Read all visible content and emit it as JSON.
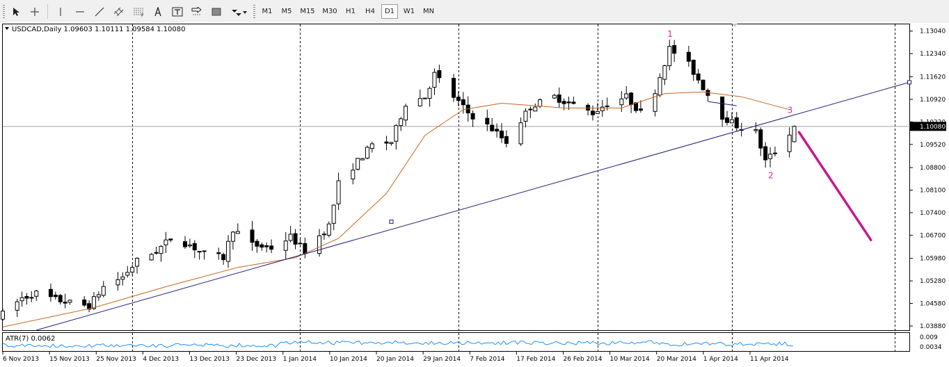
{
  "toolbar": {
    "tools": [
      {
        "name": "cursor-tool",
        "icon": "cursor-icon",
        "active": true
      },
      {
        "name": "crosshair-tool",
        "icon": "crosshair-icon",
        "active": false
      },
      {
        "name": "vertical-line-tool",
        "icon": "vertical-line-icon",
        "active": false
      },
      {
        "name": "horizontal-line-tool",
        "icon": "horizontal-line-icon",
        "active": false
      },
      {
        "name": "trendline-tool",
        "icon": "trendline-icon",
        "active": false
      },
      {
        "name": "equidistant-channel-tool",
        "icon": "channel-icon",
        "active": false
      },
      {
        "name": "fibonacci-tool",
        "icon": "fibonacci-icon",
        "active": false
      },
      {
        "name": "text-tool",
        "icon": "text-icon",
        "active": false
      },
      {
        "name": "text-label-tool",
        "icon": "text-label-icon",
        "active": false
      },
      {
        "name": "arrow-label-tool",
        "icon": "arrow-label-icon",
        "active": false
      },
      {
        "name": "rectangle-tool",
        "icon": "rectangle-icon",
        "active": false
      },
      {
        "name": "shapes-menu-tool",
        "icon": "shapes-dropdown-icon",
        "active": false
      }
    ],
    "timeframes": [
      "M1",
      "M5",
      "M15",
      "M30",
      "H1",
      "H4",
      "D1",
      "W1",
      "MN"
    ],
    "active_timeframe": "D1"
  },
  "chart_header": {
    "symbol_line": "USDCAD,Daily  1.09603 1.10111 1.09584 1.10080"
  },
  "indicator": {
    "label": "ATR(7) 0.0062",
    "scale_top": "0.009",
    "scale_bottom": "0.0034",
    "color": "#1e90ff"
  },
  "colors": {
    "ma": "#c8641e",
    "trendline": "#1e1e78",
    "arrow": "#c8178c",
    "wave_labels": "#e0248a"
  },
  "chart_data": {
    "type": "candlestick",
    "symbol": "USDCAD",
    "timeframe": "Daily",
    "last_ohlc": {
      "open": 1.09603,
      "high": 1.10111,
      "low": 1.09584,
      "close": 1.1008
    },
    "current_price_label": "1.10080",
    "price_axis_labels": [
      "1.13040",
      "1.12340",
      "1.11620",
      "1.10920",
      "1.10220",
      "1.09520",
      "1.08800",
      "1.08100",
      "1.07400",
      "1.06700",
      "1.05980",
      "1.05280",
      "1.04580",
      "1.03880"
    ],
    "ylim": [
      1.0375,
      1.1325
    ],
    "date_axis_labels": [
      "6 Nov 2013",
      "15 Nov 2013",
      "25 Nov 2013",
      "4 Dec 2013",
      "13 Dec 2013",
      "23 Dec 2013",
      "1 Jan 2014",
      "10 Jan 2014",
      "20 Jan 2014",
      "29 Jan 2014",
      "7 Feb 2014",
      "17 Feb 2014",
      "26 Feb 2014",
      "10 Mar 2014",
      "20 Mar 2014",
      "1 Apr 2014",
      "11 Apr 2014"
    ],
    "period_separators": [
      "2013-11-28",
      "2014-01-02",
      "2014-02-04",
      "2014-03-05",
      "2014-04-02",
      "2014-05-06"
    ],
    "close_path": [
      [
        "2013-11-01",
        1.0425
      ],
      [
        "2013-11-05",
        1.0475
      ],
      [
        "2013-11-08",
        1.049
      ],
      [
        "2013-11-12",
        1.047
      ],
      [
        "2013-11-15",
        1.046
      ],
      [
        "2013-11-19",
        1.045
      ],
      [
        "2013-11-22",
        1.051
      ],
      [
        "2013-11-26",
        1.054
      ],
      [
        "2013-11-29",
        1.059
      ],
      [
        "2013-12-03",
        1.062
      ],
      [
        "2013-12-06",
        1.066
      ],
      [
        "2013-12-10",
        1.064
      ],
      [
        "2013-12-13",
        1.061
      ],
      [
        "2013-12-17",
        1.06
      ],
      [
        "2013-12-19",
        1.069
      ],
      [
        "2013-12-23",
        1.064
      ],
      [
        "2013-12-27",
        1.063
      ],
      [
        "2013-12-31",
        1.0665
      ],
      [
        "2014-01-03",
        1.062
      ],
      [
        "2014-01-08",
        1.07
      ],
      [
        "2014-01-10",
        1.083
      ],
      [
        "2014-01-14",
        1.09
      ],
      [
        "2014-01-17",
        1.095
      ],
      [
        "2014-01-21",
        1.096
      ],
      [
        "2014-01-24",
        1.108
      ],
      [
        "2014-01-28",
        1.11
      ],
      [
        "2014-01-30",
        1.117
      ],
      [
        "2014-02-03",
        1.11
      ],
      [
        "2014-02-06",
        1.105
      ],
      [
        "2014-02-11",
        1.1
      ],
      [
        "2014-02-14",
        1.096
      ],
      [
        "2014-02-19",
        1.107
      ],
      [
        "2014-02-24",
        1.11
      ],
      [
        "2014-02-27",
        1.108
      ],
      [
        "2014-03-04",
        1.105
      ],
      [
        "2014-03-07",
        1.108
      ],
      [
        "2014-03-11",
        1.11
      ],
      [
        "2014-03-14",
        1.105
      ],
      [
        "2014-03-17",
        1.112
      ],
      [
        "2014-03-20",
        1.125
      ],
      [
        "2014-03-24",
        1.12
      ],
      [
        "2014-03-27",
        1.113
      ],
      [
        "2014-03-31",
        1.104
      ],
      [
        "2014-04-03",
        1.101
      ],
      [
        "2014-04-07",
        1.099
      ],
      [
        "2014-04-09",
        1.09
      ],
      [
        "2014-04-11",
        1.093
      ],
      [
        "2014-04-15",
        1.1008
      ]
    ],
    "moving_average": [
      [
        "2013-11-01",
        1.0385
      ],
      [
        "2013-11-20",
        1.0445
      ],
      [
        "2013-12-05",
        1.051
      ],
      [
        "2013-12-20",
        1.057
      ],
      [
        "2014-01-01",
        1.06
      ],
      [
        "2014-01-10",
        1.066
      ],
      [
        "2014-01-20",
        1.08
      ],
      [
        "2014-01-28",
        1.098
      ],
      [
        "2014-02-05",
        1.106
      ],
      [
        "2014-02-13",
        1.108
      ],
      [
        "2014-02-26",
        1.1065
      ],
      [
        "2014-03-10",
        1.1065
      ],
      [
        "2014-03-19",
        1.111
      ],
      [
        "2014-03-27",
        1.1115
      ],
      [
        "2014-04-04",
        1.11
      ],
      [
        "2014-04-14",
        1.106
      ]
    ],
    "trendline": {
      "points": [
        [
          "2013-11-08",
          1.0375
        ],
        [
          "2014-01-21",
          1.0712
        ],
        [
          "2014-05-09",
          1.1145
        ]
      ]
    },
    "short_trendline": {
      "points": [
        [
          "2014-03-28",
          1.1085
        ],
        [
          "2014-04-03",
          1.1072
        ]
      ]
    },
    "projection_arrow": {
      "points": [
        [
          "2014-04-16",
          1.099
        ],
        [
          "2014-05-01",
          1.0655
        ]
      ]
    },
    "wave_labels": [
      {
        "text": "1",
        "date": "2014-03-20",
        "price": 1.1295
      },
      {
        "text": "2",
        "date": "2014-04-10",
        "price": 1.0855
      },
      {
        "text": "3",
        "date": "2014-04-14",
        "price": 1.1058
      }
    ],
    "grid": false
  }
}
